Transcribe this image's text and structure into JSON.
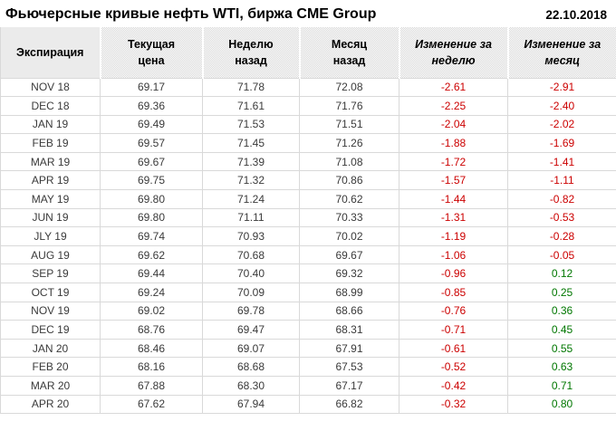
{
  "header": {
    "title": "Фьючерсные кривые нефть WTI, биржа CME Group",
    "date": "22.10.2018"
  },
  "table": {
    "columns": [
      {
        "label": "Экспирация",
        "italic": false
      },
      {
        "label": "Текущая\nцена",
        "italic": false
      },
      {
        "label": "Неделю\nназад",
        "italic": false
      },
      {
        "label": "Месяц\nназад",
        "italic": false
      },
      {
        "label": "Изменение за\nнеделю",
        "italic": true
      },
      {
        "label": "Изменение за\nмесяц",
        "italic": true
      }
    ],
    "colors": {
      "negative": "#cc0000",
      "positive": "#007700",
      "text": "#3a3a3a",
      "header_pattern_gray": "#d7d7d7",
      "grid_line": "#d9d9d9"
    },
    "rows": [
      {
        "expiration": "NOV 18",
        "current": "69.17",
        "week_ago": "71.78",
        "month_ago": "72.08",
        "week_change": "-2.61",
        "month_change": "-2.91"
      },
      {
        "expiration": "DEC 18",
        "current": "69.36",
        "week_ago": "71.61",
        "month_ago": "71.76",
        "week_change": "-2.25",
        "month_change": "-2.40"
      },
      {
        "expiration": "JAN 19",
        "current": "69.49",
        "week_ago": "71.53",
        "month_ago": "71.51",
        "week_change": "-2.04",
        "month_change": "-2.02"
      },
      {
        "expiration": "FEB 19",
        "current": "69.57",
        "week_ago": "71.45",
        "month_ago": "71.26",
        "week_change": "-1.88",
        "month_change": "-1.69"
      },
      {
        "expiration": "MAR 19",
        "current": "69.67",
        "week_ago": "71.39",
        "month_ago": "71.08",
        "week_change": "-1.72",
        "month_change": "-1.41"
      },
      {
        "expiration": "APR 19",
        "current": "69.75",
        "week_ago": "71.32",
        "month_ago": "70.86",
        "week_change": "-1.57",
        "month_change": "-1.11"
      },
      {
        "expiration": "MAY 19",
        "current": "69.80",
        "week_ago": "71.24",
        "month_ago": "70.62",
        "week_change": "-1.44",
        "month_change": "-0.82"
      },
      {
        "expiration": "JUN 19",
        "current": "69.80",
        "week_ago": "71.11",
        "month_ago": "70.33",
        "week_change": "-1.31",
        "month_change": "-0.53"
      },
      {
        "expiration": "JLY 19",
        "current": "69.74",
        "week_ago": "70.93",
        "month_ago": "70.02",
        "week_change": "-1.19",
        "month_change": "-0.28"
      },
      {
        "expiration": "AUG 19",
        "current": "69.62",
        "week_ago": "70.68",
        "month_ago": "69.67",
        "week_change": "-1.06",
        "month_change": "-0.05"
      },
      {
        "expiration": "SEP 19",
        "current": "69.44",
        "week_ago": "70.40",
        "month_ago": "69.32",
        "week_change": "-0.96",
        "month_change": "0.12"
      },
      {
        "expiration": "OCT 19",
        "current": "69.24",
        "week_ago": "70.09",
        "month_ago": "68.99",
        "week_change": "-0.85",
        "month_change": "0.25"
      },
      {
        "expiration": "NOV 19",
        "current": "69.02",
        "week_ago": "69.78",
        "month_ago": "68.66",
        "week_change": "-0.76",
        "month_change": "0.36"
      },
      {
        "expiration": "DEC 19",
        "current": "68.76",
        "week_ago": "69.47",
        "month_ago": "68.31",
        "week_change": "-0.71",
        "month_change": "0.45"
      },
      {
        "expiration": "JAN 20",
        "current": "68.46",
        "week_ago": "69.07",
        "month_ago": "67.91",
        "week_change": "-0.61",
        "month_change": "0.55"
      },
      {
        "expiration": "FEB 20",
        "current": "68.16",
        "week_ago": "68.68",
        "month_ago": "67.53",
        "week_change": "-0.52",
        "month_change": "0.63"
      },
      {
        "expiration": "MAR 20",
        "current": "67.88",
        "week_ago": "68.30",
        "month_ago": "67.17",
        "week_change": "-0.42",
        "month_change": "0.71"
      },
      {
        "expiration": "APR 20",
        "current": "67.62",
        "week_ago": "67.94",
        "month_ago": "66.82",
        "week_change": "-0.32",
        "month_change": "0.80"
      }
    ]
  }
}
